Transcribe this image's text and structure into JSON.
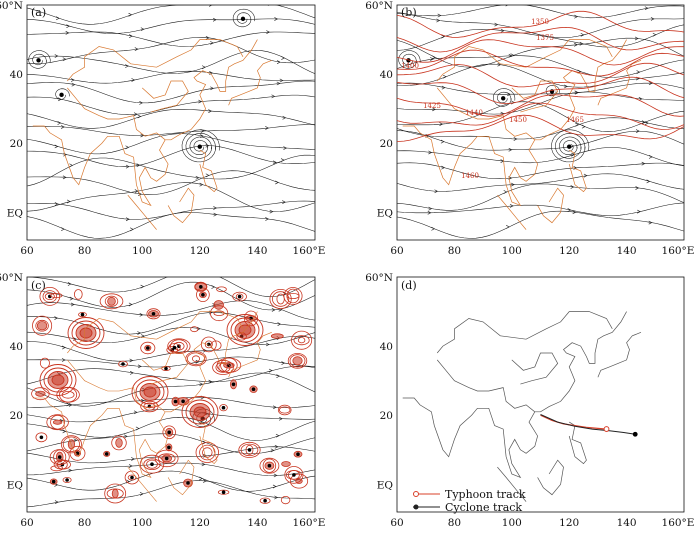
{
  "panels": [
    {
      "id": "a",
      "label": "(a)"
    },
    {
      "id": "b",
      "label": "(b)"
    },
    {
      "id": "c",
      "label": "(c)"
    },
    {
      "id": "d",
      "label": "(d)"
    }
  ],
  "axes": {
    "lon_ticks": [
      "60",
      "80",
      "100",
      "120",
      "140",
      "160°E"
    ],
    "lat_ticks": [
      "60°N",
      "40",
      "20",
      "EQ"
    ]
  },
  "legend": {
    "typhoon": "Typhoon track",
    "cyclone": "Cyclone track"
  },
  "contour_labels_b": [
    "1350",
    "1375",
    "1400",
    "1425",
    "1440",
    "1450",
    "1460",
    "1465"
  ],
  "colors": {
    "streamline": "#1a1a1a",
    "coast": "#d8772e",
    "contour": "#c8341f",
    "track_typhoon": "#d9402a",
    "track_cyclone": "#222222"
  }
}
